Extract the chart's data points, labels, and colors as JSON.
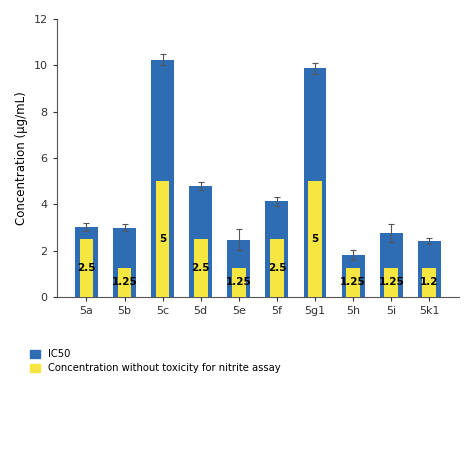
{
  "categories": [
    "5a",
    "5b",
    "5c",
    "5d",
    "5e",
    "5f",
    "5g1",
    "5h",
    "5i",
    "5k1"
  ],
  "ic50_values": [
    3.02,
    2.98,
    10.25,
    4.78,
    2.47,
    4.12,
    9.87,
    1.82,
    2.75,
    2.42
  ],
  "ic50_errors": [
    0.18,
    0.15,
    0.22,
    0.18,
    0.45,
    0.18,
    0.25,
    0.22,
    0.38,
    0.12
  ],
  "conc_values": [
    2.5,
    1.25,
    5.0,
    2.5,
    1.25,
    2.5,
    5.0,
    1.25,
    1.25,
    1.25
  ],
  "conc_labels": [
    "2.5",
    "1.25",
    "5",
    "2.5",
    "1.25",
    "2.5",
    "5",
    "1.25",
    "1.25",
    "1.2"
  ],
  "bar_color_blue": "#2e6db4",
  "bar_color_yellow": "#f5e642",
  "ylabel": "Concentration (μg/mL)",
  "ylim": [
    0,
    12
  ],
  "yticks": [
    0,
    2,
    4,
    6,
    8,
    10,
    12
  ],
  "legend_ic50": "IC50",
  "legend_conc": "Concentration without toxicity for nitrite assay",
  "bar_width": 0.6,
  "label_fontsize": 7.5,
  "tick_fontsize": 8,
  "ylabel_fontsize": 8.5
}
